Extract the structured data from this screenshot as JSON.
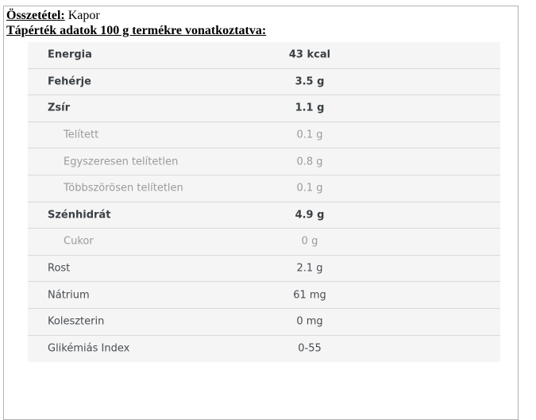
{
  "header": {
    "ingredients_label": "Összetétel:",
    "ingredients_value": " Kapor",
    "nutrition_title": "Tápérték adatok 100 g termékre vonatkoztatva:"
  },
  "nutrition_table": {
    "rows": [
      {
        "label": "Energia",
        "value": "43 kcal",
        "style": "main"
      },
      {
        "label": "Fehérje",
        "value": "3.5 g",
        "style": "main"
      },
      {
        "label": "Zsír",
        "value": "1.1 g",
        "style": "main"
      },
      {
        "label": "Telített",
        "value": "0.1 g",
        "style": "sub"
      },
      {
        "label": "Egyszeresen telítetlen",
        "value": "0.8 g",
        "style": "sub"
      },
      {
        "label": "Többszörösen telítetlen",
        "value": "0.1 g",
        "style": "sub"
      },
      {
        "label": "Szénhidrát",
        "value": "4.9 g",
        "style": "main"
      },
      {
        "label": "Cukor",
        "value": "0 g",
        "style": "sub"
      },
      {
        "label": "Rost",
        "value": "2.1 g",
        "style": "plain"
      },
      {
        "label": "Nátrium",
        "value": "61 mg",
        "style": "plain"
      },
      {
        "label": "Koleszterin",
        "value": "0 mg",
        "style": "plain"
      },
      {
        "label": "Glikémiás Index",
        "value": "0-55",
        "style": "plain"
      }
    ]
  },
  "colors": {
    "table_background": "#f5f5f5",
    "row_divider": "#d9d9d9",
    "main_text": "#3b4045",
    "sub_text": "#9b9b9b",
    "plain_text": "#484d52",
    "outer_border": "#b3b3b3"
  }
}
